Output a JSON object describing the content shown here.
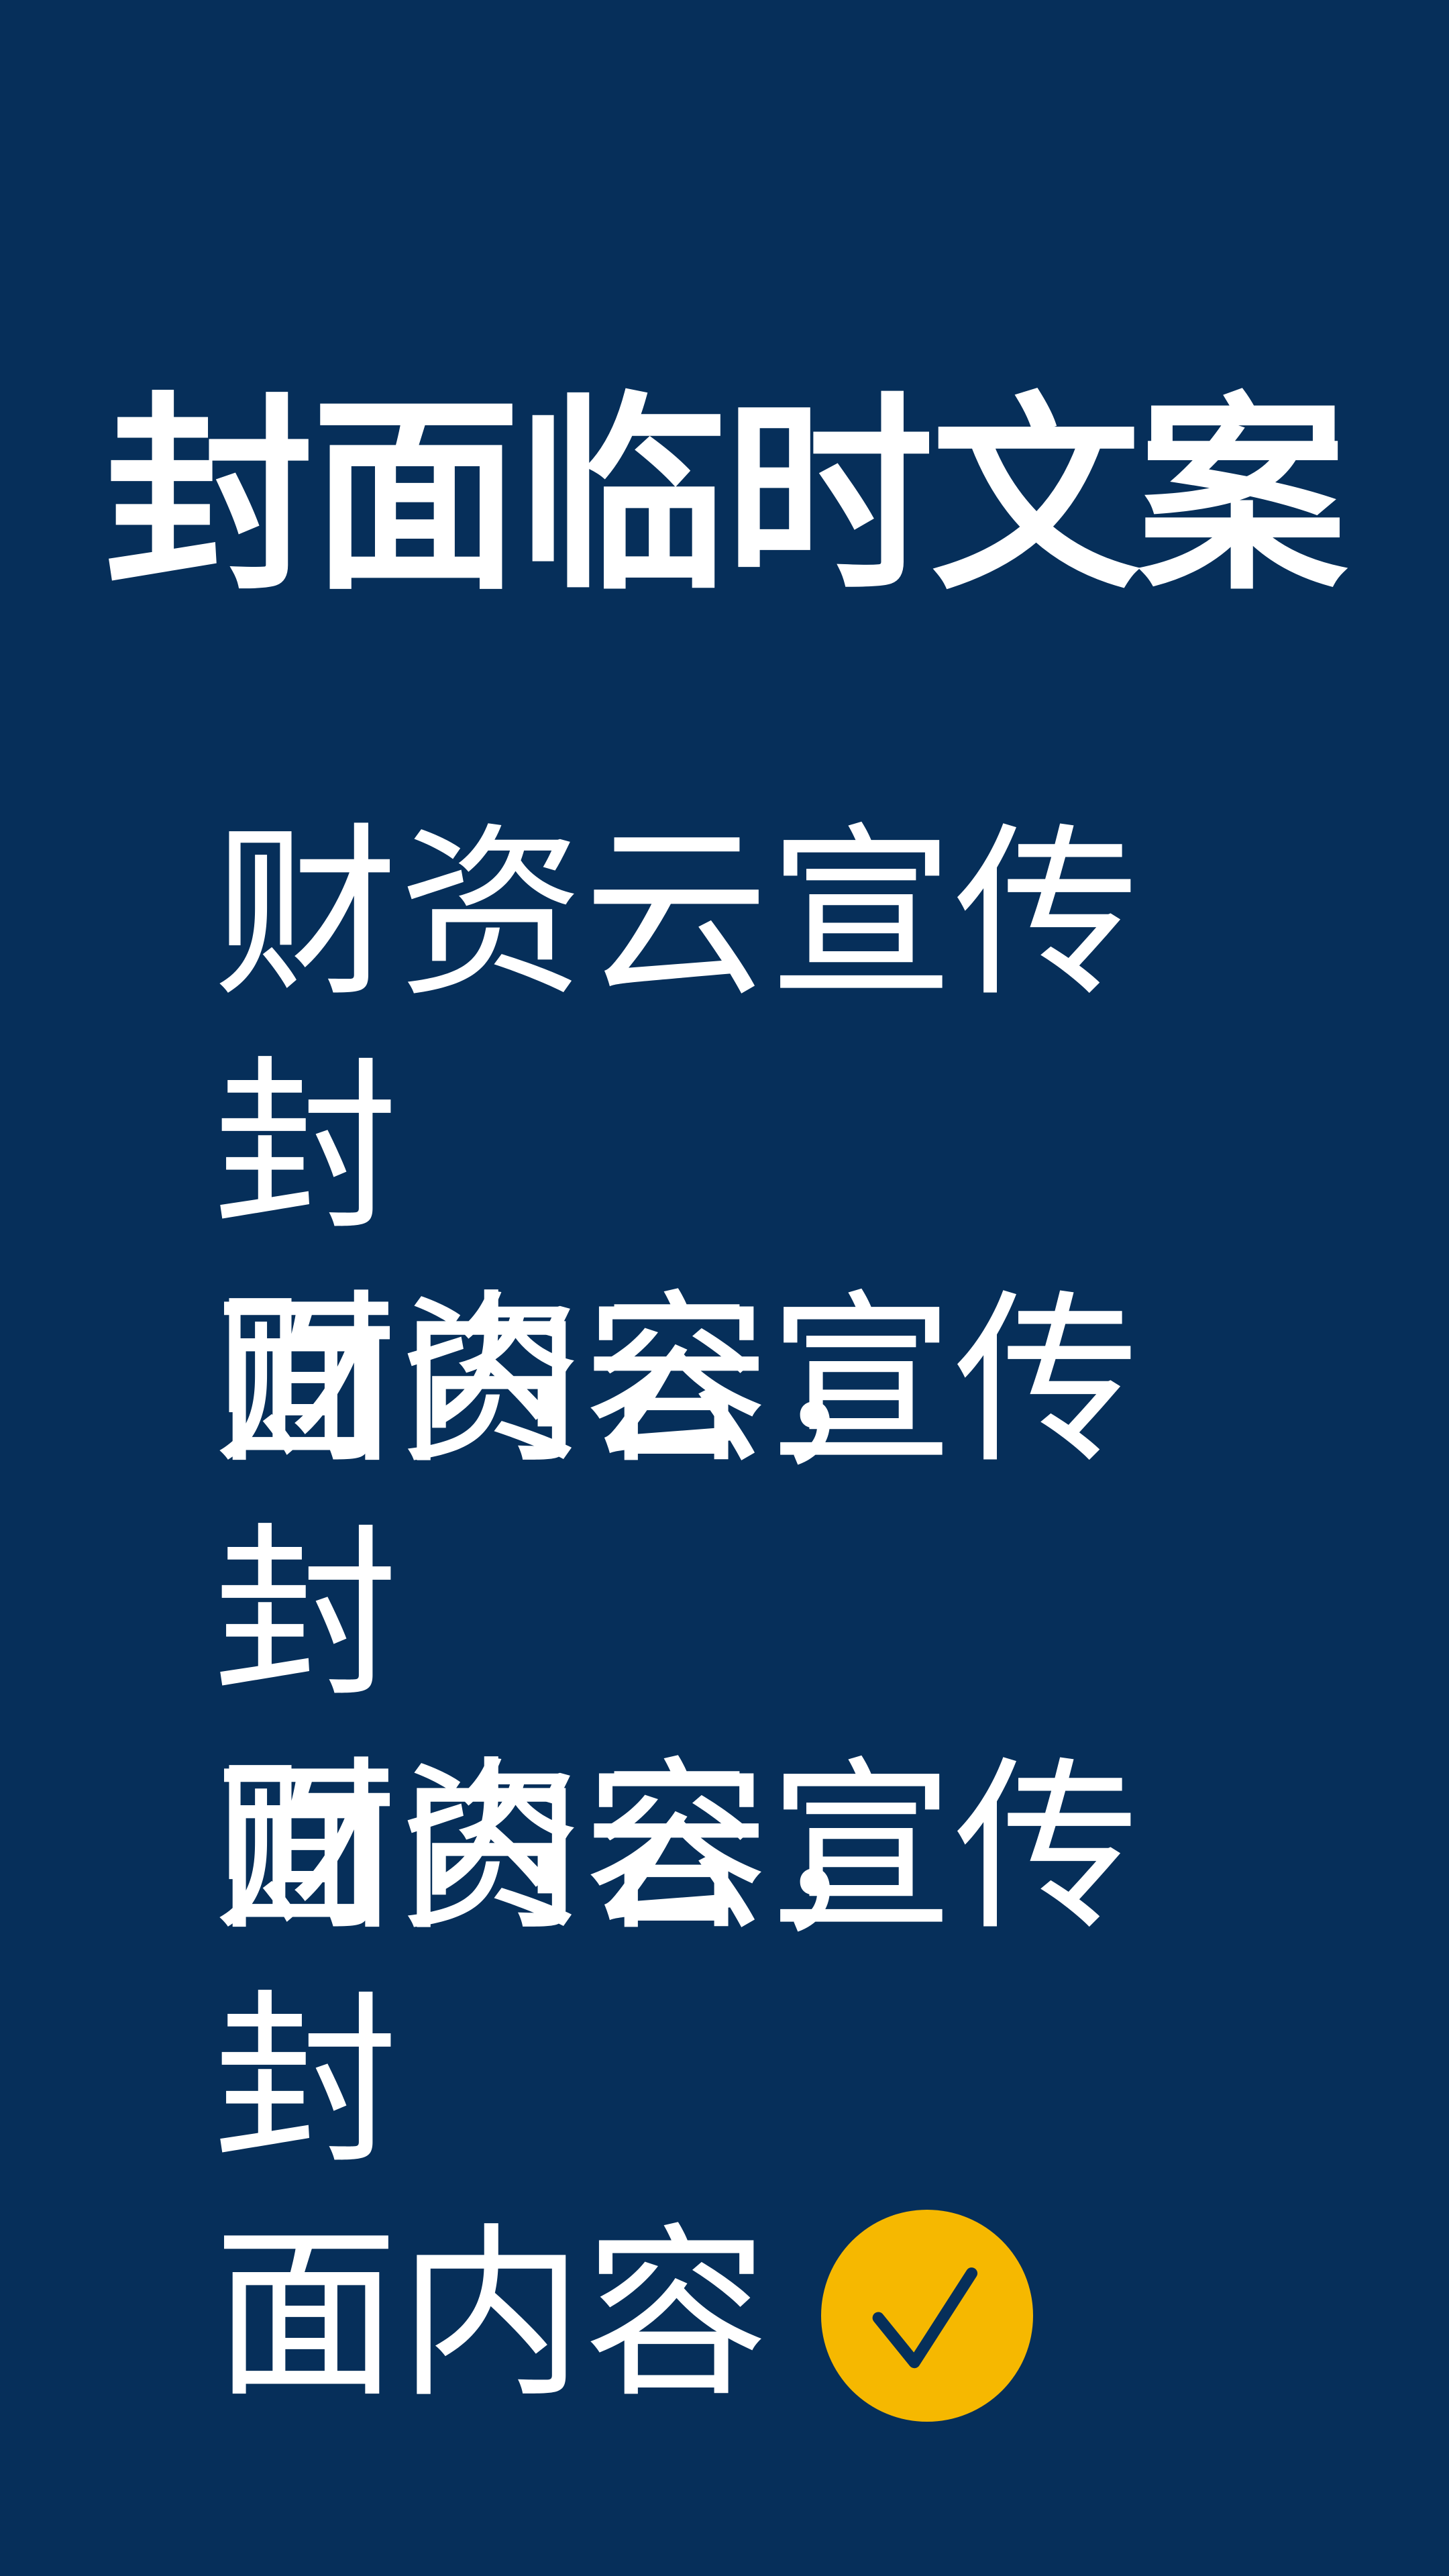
{
  "title": "封面临时文案",
  "paragraphs": [
    {
      "line1": "财资云宣传封",
      "line2": "面内容，"
    },
    {
      "line1": "财资云宣传封",
      "line2": "面内容，"
    },
    {
      "line1": "财资云宣传封",
      "line2": "面内容"
    }
  ],
  "badge": {
    "icon": "check-circle-icon",
    "color": "#f6b800",
    "check_color": "#062f5a"
  },
  "colors": {
    "background": "#062f5a",
    "text": "#ffffff"
  }
}
